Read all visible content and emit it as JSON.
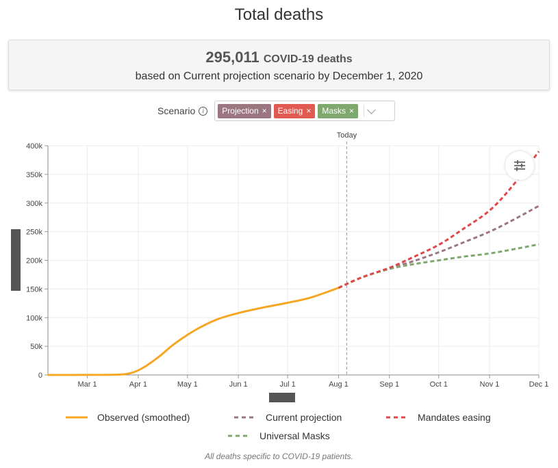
{
  "title": "Total deaths",
  "summary": {
    "count": "295,011",
    "unit": "COVID-19 deaths",
    "subtitle": "based on Current projection scenario by December 1, 2020"
  },
  "scenario": {
    "label": "Scenario",
    "chips": [
      {
        "label": "Projection",
        "color": "#9b7681"
      },
      {
        "label": "Easing",
        "color": "#e05a52"
      },
      {
        "label": "Masks",
        "color": "#7fa86e"
      }
    ]
  },
  "legend": [
    {
      "label": "Observed (smoothed)",
      "color": "#f5a623",
      "style": "solid"
    },
    {
      "label": "Current projection",
      "color": "#9b7681",
      "style": "dashed"
    },
    {
      "label": "Mandates easing",
      "color": "#e04848",
      "style": "dashed"
    },
    {
      "label": "Universal Masks",
      "color": "#7fa86e",
      "style": "dashed"
    }
  ],
  "footnote": "All deaths specific to COVID-19 patients.",
  "chart_data": {
    "type": "line",
    "title": "Total deaths",
    "today_label": "Today",
    "today_x": "2020-08-06",
    "x_range": [
      "2020-02-06",
      "2020-12-01"
    ],
    "ylim": [
      0,
      400000
    ],
    "y_ticks": [
      0,
      50000,
      100000,
      150000,
      200000,
      250000,
      300000,
      350000,
      400000
    ],
    "y_tick_labels": [
      "0",
      "50k",
      "100k",
      "150k",
      "200k",
      "250k",
      "300k",
      "350k",
      "400k"
    ],
    "x_ticks": [
      "2020-03-01",
      "2020-04-01",
      "2020-05-01",
      "2020-06-01",
      "2020-07-01",
      "2020-08-01",
      "2020-09-01",
      "2020-10-01",
      "2020-11-01",
      "2020-12-01"
    ],
    "x_tick_labels": [
      "Mar 1",
      "Apr 1",
      "May 1",
      "Jun 1",
      "Jul 1",
      "Aug 1",
      "Sep 1",
      "Oct 1",
      "Nov 1",
      "Dec 1"
    ],
    "grid": true,
    "series": [
      {
        "name": "Observed (smoothed)",
        "color": "#f5a623",
        "dash": false,
        "points": [
          [
            "2020-02-06",
            0
          ],
          [
            "2020-03-01",
            100
          ],
          [
            "2020-03-20",
            600
          ],
          [
            "2020-03-27",
            3000
          ],
          [
            "2020-04-01",
            8000
          ],
          [
            "2020-04-07",
            18000
          ],
          [
            "2020-04-15",
            35000
          ],
          [
            "2020-04-22",
            52000
          ],
          [
            "2020-05-01",
            70000
          ],
          [
            "2020-05-10",
            85000
          ],
          [
            "2020-05-20",
            98000
          ],
          [
            "2020-06-01",
            108000
          ],
          [
            "2020-06-15",
            117000
          ],
          [
            "2020-07-01",
            126000
          ],
          [
            "2020-07-15",
            135000
          ],
          [
            "2020-08-01",
            152000
          ]
        ]
      },
      {
        "name": "Current projection",
        "color": "#9b7681",
        "dash": true,
        "points": [
          [
            "2020-08-01",
            152000
          ],
          [
            "2020-08-15",
            170000
          ],
          [
            "2020-09-01",
            186000
          ],
          [
            "2020-09-15",
            198000
          ],
          [
            "2020-10-01",
            214000
          ],
          [
            "2020-10-15",
            230000
          ],
          [
            "2020-11-01",
            250000
          ],
          [
            "2020-11-15",
            270000
          ],
          [
            "2020-12-01",
            295011
          ]
        ]
      },
      {
        "name": "Mandates easing",
        "color": "#e04848",
        "dash": true,
        "points": [
          [
            "2020-08-01",
            152000
          ],
          [
            "2020-08-15",
            170000
          ],
          [
            "2020-09-01",
            187000
          ],
          [
            "2020-09-15",
            205000
          ],
          [
            "2020-10-01",
            227000
          ],
          [
            "2020-10-15",
            253000
          ],
          [
            "2020-11-01",
            287000
          ],
          [
            "2020-11-15",
            330000
          ],
          [
            "2020-12-01",
            390000
          ]
        ]
      },
      {
        "name": "Universal Masks",
        "color": "#7fa86e",
        "dash": true,
        "points": [
          [
            "2020-08-01",
            152000
          ],
          [
            "2020-08-15",
            170000
          ],
          [
            "2020-09-01",
            185000
          ],
          [
            "2020-09-15",
            193000
          ],
          [
            "2020-10-01",
            200000
          ],
          [
            "2020-10-15",
            206000
          ],
          [
            "2020-11-01",
            212000
          ],
          [
            "2020-11-15",
            219000
          ],
          [
            "2020-12-01",
            228000
          ]
        ]
      }
    ]
  }
}
